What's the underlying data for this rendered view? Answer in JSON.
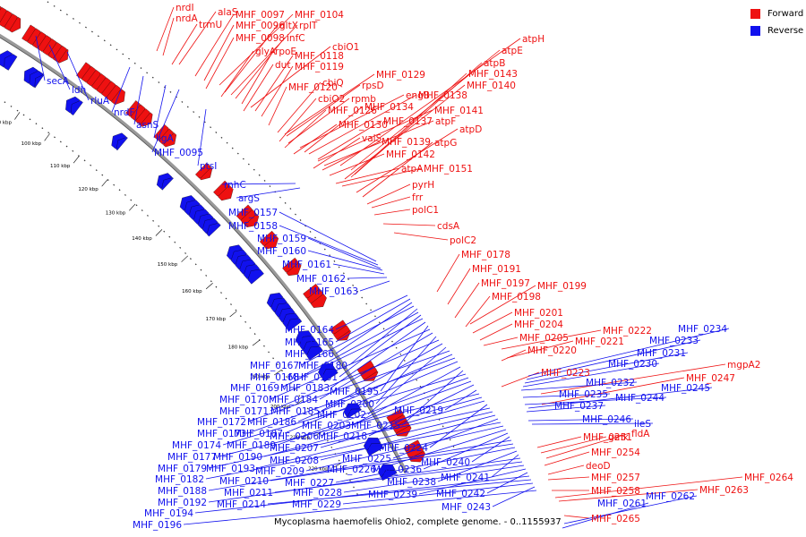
{
  "legend": {
    "forward_label": "Forward",
    "reverse_label": "Reverse",
    "forward_color": "#ee1111",
    "reverse_color": "#1111ee"
  },
  "caption": "Mycoplasma haemofelis Ohio2, complete genome. - 0..1155937",
  "ticks": [
    "60 kbp",
    "70 kbp",
    "80 kbp",
    "90 kbp",
    "100 kbp",
    "110 kbp",
    "120 kbp",
    "130 kbp",
    "140 kbp",
    "150 kbp",
    "160 kbp",
    "170 kbp",
    "180 kbp",
    "190 kbp",
    "200 kbp",
    "210 kbp",
    "220 kbp"
  ],
  "forward_genes": [
    "nrdI",
    "nrdA",
    "trmU",
    "alaS",
    "MHF_0097",
    "MHF_0104",
    "MHF_0096",
    "gltX",
    "rplT",
    "MHF_0098",
    "infC",
    "cbiO1",
    "glyA",
    "rpoE",
    "MHF_0118",
    "dut",
    "MHF_0119",
    "MHF_0120",
    "cbiQ",
    "rpsD",
    "MHF_0129",
    "cbiO2",
    "rpmb",
    "engB",
    "MHF_0138",
    "MHF_0126",
    "MHF_0134",
    "MHF_0141",
    "MHF_0130",
    "MHF_0137",
    "atpF",
    "valS",
    "MHF_0139",
    "MHF_0142",
    "atpA",
    "MHF_0151",
    "atpH",
    "atpE",
    "atpB",
    "MHF_0143",
    "MHF_0140",
    "atpD",
    "atpG",
    "pyrH",
    "frr",
    "polC1",
    "cdsA",
    "polC2",
    "MHF_0178",
    "MHF_0191",
    "MHF_0197",
    "MHF_0199",
    "MHF_0198",
    "MHF_0201",
    "MHF_0204",
    "MHF_0205",
    "MHF_0222",
    "MHF_0221",
    "MHF_0220",
    "MHF_0223",
    "mgpA2",
    "MHF_0247",
    "MHF_0251",
    "gmk",
    "fldA",
    "MHF_0254",
    "deoD",
    "MHF_0257",
    "MHF_0258",
    "MHF_0264",
    "MHF_0263",
    "MHF_0265"
  ],
  "reverse_genes": [
    "secA",
    "ldh",
    "rluA",
    "nrdF",
    "asnS",
    "ligA",
    "MHF_0095",
    "ptsI",
    "rnhC",
    "argS",
    "MHF_0157",
    "MHF_0158",
    "MHF_0159",
    "MHF_0160",
    "MHF_0161",
    "MHF_0162",
    "MHF_0163",
    "MHF_0164",
    "MHF_0165",
    "MHF_0166",
    "MHF_0167",
    "MHF_0180",
    "MHF_0168",
    "MHF_0181",
    "MHF_0169",
    "MHF_0183",
    "MHF_0195",
    "MHF_0170",
    "MHF_0184",
    "MHF_0200",
    "MHF_0171",
    "MHF_0185",
    "MHF_0202",
    "MHF_0172",
    "MHF_0186",
    "MHF_0173",
    "MHF_0187",
    "MHF_0203",
    "MHF_0215",
    "MHF_0174",
    "MHF_0189",
    "MHF_0206",
    "MHF_0218",
    "MHF_0219",
    "MHF_0177",
    "MHF_0190",
    "MHF_0207",
    "MHF_0224",
    "MHF_0179",
    "MHF_0193",
    "MHF_0208",
    "MHF_0225",
    "MHF_0182",
    "MHF_0209",
    "MHF_0226",
    "MHF_0236",
    "MHF_0240",
    "MHF_0188",
    "MHF_0210",
    "MHF_0227",
    "MHF_0238",
    "MHF_0241",
    "MHF_0192",
    "MHF_0211",
    "MHF_0228",
    "MHF_0239",
    "MHF_0242",
    "MHF_0194",
    "MHF_0214",
    "MHF_0229",
    "MHF_0243",
    "MHF_0196",
    "MHF_0234",
    "MHF_0233",
    "MHF_0231",
    "MHF_0230",
    "MHF_0232",
    "MHF_0235",
    "MHF_0244",
    "MHF_0245",
    "MHF_0237",
    "MHF_0246",
    "ileS",
    "MHF_0262",
    "MHF_0261"
  ]
}
